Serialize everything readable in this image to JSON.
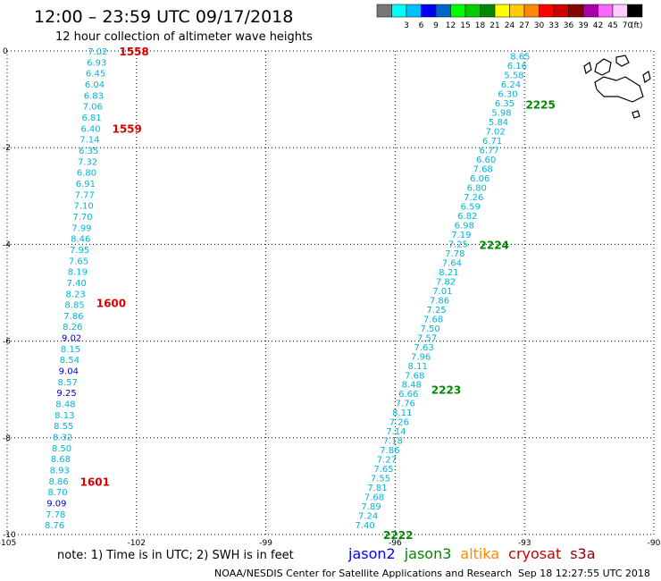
{
  "header": {
    "title": "12:00 – 23:59 UTC 09/17/2018",
    "subtitle": "12 hour collection of altimeter wave heights"
  },
  "colorbar": {
    "unit": "(ft)",
    "swatches": [
      {
        "label": "",
        "color": "#777777"
      },
      {
        "label": "3",
        "color": "#00ffff"
      },
      {
        "label": "6",
        "color": "#00bfff"
      },
      {
        "label": "9",
        "color": "#0000ff"
      },
      {
        "label": "12",
        "color": "#0066cc"
      },
      {
        "label": "15",
        "color": "#00ff00"
      },
      {
        "label": "18",
        "color": "#00cc00"
      },
      {
        "label": "21",
        "color": "#008800"
      },
      {
        "label": "24",
        "color": "#ffff00"
      },
      {
        "label": "27",
        "color": "#ffcc00"
      },
      {
        "label": "30",
        "color": "#ff8800"
      },
      {
        "label": "33",
        "color": "#ff0000"
      },
      {
        "label": "36",
        "color": "#cc0000"
      },
      {
        "label": "39",
        "color": "#880000"
      },
      {
        "label": "42",
        "color": "#aa00aa"
      },
      {
        "label": "45",
        "color": "#ff66ff"
      },
      {
        "label": "70",
        "color": "#ffccff"
      },
      {
        "label": "",
        "color": "#000000"
      }
    ]
  },
  "footer": {
    "note": "note: 1) Time is in UTC; 2) SWH is in feet",
    "satellites": [
      {
        "name": "jason2",
        "color": "#0000ff"
      },
      {
        "name": "jason3",
        "color": "#008800"
      },
      {
        "name": "altika",
        "color": "#ff8800"
      },
      {
        "name": "cryosat",
        "color": "#cc0000"
      },
      {
        "name": "s3a",
        "color": "#880000"
      }
    ],
    "credit": "NOAA/NESDIS Center for Satellite Applications and Research",
    "timestamp": "Sep 18 12:27:55 UTC 2018"
  },
  "chart_data": {
    "type": "scatter",
    "xlim": [
      -105,
      -90
    ],
    "ylim": [
      -10,
      0
    ],
    "x_ticks": [
      -105,
      -102,
      -99,
      -96,
      -93,
      -90
    ],
    "y_ticks": [
      0,
      -2,
      -4,
      -6,
      -8,
      -10
    ],
    "x_tick_labels": [
      "-105",
      "-102",
      "-99",
      "-96",
      "-93",
      "-90"
    ],
    "y_tick_labels": [
      "0",
      "-2",
      "-4",
      "-6",
      "-8",
      "-10"
    ],
    "grid": true,
    "colors": {
      "light": "#00b4dc",
      "dark": "#0000cc",
      "time_west": "#dd0000",
      "time_east": "#008800"
    },
    "series": [
      {
        "x_start": -102.9,
        "x_end": -103.9,
        "y_start": 0,
        "y_end": -9.8,
        "values": [
          "7.02",
          "6.93",
          "6.45",
          "6.04",
          "6.83",
          "7.06",
          "6.81",
          "6.40",
          "7.14",
          "6.35",
          "7.32",
          "6.80",
          "6.91",
          "7.77",
          "7.10",
          "7.70",
          "7.99",
          "8.46",
          "7.95",
          "7.65",
          "8.19",
          "7.40",
          "8.23",
          "8.85",
          "7.86",
          "8.26",
          "9.02",
          "8.15",
          "8.54",
          "9.04",
          "8.57",
          "9.25",
          "8.48",
          "8.13",
          "8.55",
          "8.32",
          "8.50",
          "8.68",
          "8.93",
          "8.86",
          "8.70",
          "9.09",
          "7.78",
          "8.76"
        ],
        "dark_indices": [
          26,
          29,
          31,
          41
        ],
        "times": [
          {
            "label": "1558",
            "y": 0.0
          },
          {
            "label": "1559",
            "y": -1.6
          },
          {
            "label": "1600",
            "y": -5.2
          },
          {
            "label": "1601",
            "y": -8.9
          }
        ]
      },
      {
        "x_start": -93.1,
        "x_end": -96.7,
        "y_start": -0.1,
        "y_end": -9.8,
        "values": [
          "8.65",
          "6.16",
          "5.58",
          "6.24",
          "6.30",
          "6.35",
          "5.98",
          "5.84",
          "7.02",
          "6.71",
          "6.77",
          "6.60",
          "7.68",
          "6.06",
          "6.80",
          "7.26",
          "6.59",
          "6.82",
          "6.98",
          "7.19",
          "7.25",
          "7.78",
          "7.64",
          "8.21",
          "7.82",
          "7.01",
          "7.86",
          "7.25",
          "7.68",
          "7.50",
          "7.57",
          "7.63",
          "7.96",
          "8.11",
          "7.68",
          "8.48",
          "6.66",
          "7.76",
          "8.11",
          "7.26",
          "7.14",
          "7.18",
          "7.86",
          "7.27",
          "7.65",
          "7.55",
          "7.81",
          "7.68",
          "7.89",
          "7.24",
          "7.40"
        ],
        "dark_indices": [],
        "times": [
          {
            "label": "2225",
            "y": -1.1
          },
          {
            "label": "2224",
            "y": -4.0
          },
          {
            "label": "2223",
            "y": -7.0
          },
          {
            "label": "2222",
            "y": -10.0
          }
        ]
      }
    ]
  }
}
